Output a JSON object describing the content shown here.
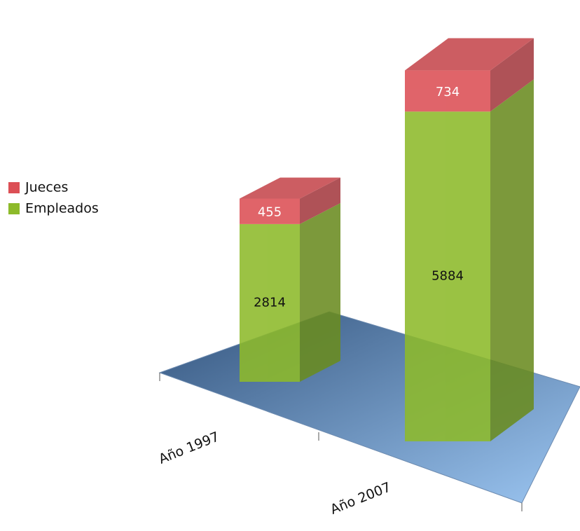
{
  "chart_data": {
    "type": "bar3d_stacked",
    "categories": [
      "Año 1997",
      "Año 2007"
    ],
    "series": [
      {
        "name": "Empleados",
        "color": "#8dba2a",
        "values": [
          2814,
          5884
        ]
      },
      {
        "name": "Jueces",
        "color": "#dc4f55",
        "values": [
          455,
          734
        ]
      }
    ]
  }
}
